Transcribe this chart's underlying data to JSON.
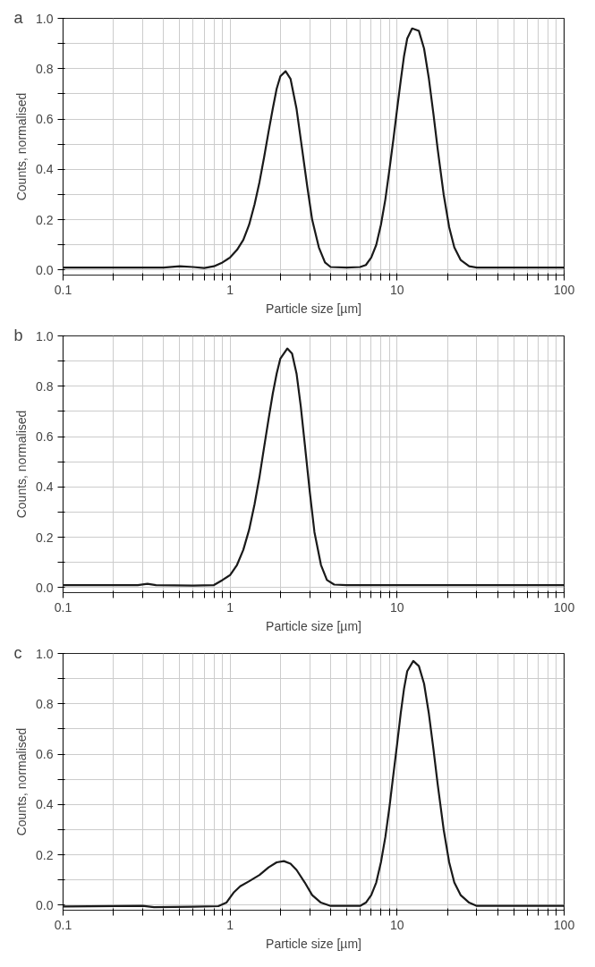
{
  "chart_data": [
    {
      "type": "line",
      "title": "a",
      "xlabel": "Particle size [µm]",
      "ylabel": "Counts, normalised",
      "log": "x",
      "grid": true,
      "marker": "none",
      "line_style": "solid",
      "xlim": [
        0.1,
        100
      ],
      "ylim": [
        -0.02,
        1.0
      ],
      "xticks": [
        0.1,
        {
          "value": 0.2,
          "label": null
        },
        {
          "value": 0.3,
          "label": null
        },
        {
          "value": 0.4,
          "label": null
        },
        {
          "value": 0.5,
          "label": null
        },
        {
          "value": 0.6,
          "label": null
        },
        {
          "value": 0.7,
          "label": null
        },
        {
          "value": 0.8,
          "label": null
        },
        {
          "value": 0.9,
          "label": null
        },
        1,
        {
          "value": 2,
          "label": null
        },
        {
          "value": 3,
          "label": null
        },
        {
          "value": 4,
          "label": null
        },
        {
          "value": 5,
          "label": null
        },
        {
          "value": 6,
          "label": null
        },
        {
          "value": 7,
          "label": null
        },
        {
          "value": 8,
          "label": null
        },
        {
          "value": 9,
          "label": null
        },
        10,
        {
          "value": 20,
          "label": null
        },
        {
          "value": 30,
          "label": null
        },
        {
          "value": 40,
          "label": null
        },
        {
          "value": 50,
          "label": null
        },
        {
          "value": 60,
          "label": null
        },
        {
          "value": 70,
          "label": null
        },
        {
          "value": 80,
          "label": null
        },
        {
          "value": 90,
          "label": null
        },
        100
      ],
      "yticks": [
        {
          "value": 0,
          "label": "0.0"
        },
        {
          "value": 0.1,
          "label": null
        },
        0.2,
        {
          "value": 0.3,
          "label": null
        },
        0.4,
        {
          "value": 0.5,
          "label": null
        },
        0.6,
        {
          "value": 0.7,
          "label": null
        },
        0.8,
        {
          "value": 0.9,
          "label": null
        },
        {
          "value": 1,
          "label": "1.0"
        }
      ],
      "series": [
        {
          "color": "#1a1a1a",
          "x": [
            0.1,
            0.4,
            0.5,
            0.6,
            0.7,
            0.8,
            0.9,
            1,
            1.1,
            1.2,
            1.3,
            1.4,
            1.5,
            1.6,
            1.7,
            1.8,
            1.9,
            2.0,
            2.15,
            2.3,
            2.5,
            2.7,
            2.9,
            3.1,
            3.4,
            3.7,
            4,
            5,
            6,
            6.5,
            7,
            7.5,
            8,
            8.5,
            9,
            9.5,
            10,
            10.5,
            11,
            11.5,
            12.3,
            13.5,
            14.5,
            15.5,
            16.5,
            17.5,
            19,
            20.5,
            22,
            24,
            27,
            30,
            100
          ],
          "values": [
            0.01,
            0.01,
            0.015,
            0.012,
            0.008,
            0.015,
            0.03,
            0.05,
            0.08,
            0.12,
            0.18,
            0.26,
            0.35,
            0.45,
            0.55,
            0.64,
            0.72,
            0.77,
            0.79,
            0.76,
            0.64,
            0.48,
            0.33,
            0.2,
            0.09,
            0.03,
            0.012,
            0.01,
            0.012,
            0.02,
            0.05,
            0.1,
            0.18,
            0.28,
            0.4,
            0.52,
            0.64,
            0.75,
            0.85,
            0.92,
            0.96,
            0.95,
            0.88,
            0.76,
            0.62,
            0.48,
            0.3,
            0.17,
            0.09,
            0.04,
            0.015,
            0.01,
            0.01
          ]
        }
      ]
    },
    {
      "type": "line",
      "title": "b",
      "xlabel": "Particle size [µm]",
      "ylabel": "Counts, normalised",
      "log": "x",
      "grid": true,
      "marker": "none",
      "line_style": "solid",
      "xlim": [
        0.1,
        100
      ],
      "ylim": [
        -0.02,
        1.0
      ],
      "xticks": [
        0.1,
        {
          "value": 0.2,
          "label": null
        },
        {
          "value": 0.3,
          "label": null
        },
        {
          "value": 0.4,
          "label": null
        },
        {
          "value": 0.5,
          "label": null
        },
        {
          "value": 0.6,
          "label": null
        },
        {
          "value": 0.7,
          "label": null
        },
        {
          "value": 0.8,
          "label": null
        },
        {
          "value": 0.9,
          "label": null
        },
        1,
        {
          "value": 2,
          "label": null
        },
        {
          "value": 3,
          "label": null
        },
        {
          "value": 4,
          "label": null
        },
        {
          "value": 5,
          "label": null
        },
        {
          "value": 6,
          "label": null
        },
        {
          "value": 7,
          "label": null
        },
        {
          "value": 8,
          "label": null
        },
        {
          "value": 9,
          "label": null
        },
        10,
        {
          "value": 20,
          "label": null
        },
        {
          "value": 30,
          "label": null
        },
        {
          "value": 40,
          "label": null
        },
        {
          "value": 50,
          "label": null
        },
        {
          "value": 60,
          "label": null
        },
        {
          "value": 70,
          "label": null
        },
        {
          "value": 80,
          "label": null
        },
        {
          "value": 90,
          "label": null
        },
        100
      ],
      "yticks": [
        {
          "value": 0,
          "label": "0.0"
        },
        {
          "value": 0.1,
          "label": null
        },
        0.2,
        {
          "value": 0.3,
          "label": null
        },
        0.4,
        {
          "value": 0.5,
          "label": null
        },
        0.6,
        {
          "value": 0.7,
          "label": null
        },
        0.8,
        {
          "value": 0.9,
          "label": null
        },
        {
          "value": 1,
          "label": "1.0"
        }
      ],
      "series": [
        {
          "color": "#1a1a1a",
          "x": [
            0.1,
            0.28,
            0.32,
            0.36,
            0.6,
            0.8,
            0.9,
            1,
            1.1,
            1.2,
            1.3,
            1.4,
            1.5,
            1.6,
            1.7,
            1.8,
            1.9,
            2.0,
            2.2,
            2.35,
            2.5,
            2.65,
            2.8,
            3.0,
            3.2,
            3.5,
            3.8,
            4.2,
            5,
            100
          ],
          "values": [
            0.01,
            0.01,
            0.015,
            0.01,
            0.008,
            0.01,
            0.03,
            0.05,
            0.09,
            0.15,
            0.23,
            0.33,
            0.44,
            0.56,
            0.67,
            0.77,
            0.85,
            0.91,
            0.95,
            0.93,
            0.85,
            0.72,
            0.57,
            0.38,
            0.22,
            0.09,
            0.03,
            0.012,
            0.01,
            0.01
          ]
        }
      ]
    },
    {
      "type": "line",
      "title": "c",
      "xlabel": "Particle size [µm]",
      "ylabel": "Counts, normalised",
      "log": "x",
      "grid": true,
      "marker": "none",
      "line_style": "solid",
      "xlim": [
        0.1,
        100
      ],
      "ylim": [
        -0.02,
        1.0
      ],
      "xticks": [
        0.1,
        {
          "value": 0.2,
          "label": null
        },
        {
          "value": 0.3,
          "label": null
        },
        {
          "value": 0.4,
          "label": null
        },
        {
          "value": 0.5,
          "label": null
        },
        {
          "value": 0.6,
          "label": null
        },
        {
          "value": 0.7,
          "label": null
        },
        {
          "value": 0.8,
          "label": null
        },
        {
          "value": 0.9,
          "label": null
        },
        1,
        {
          "value": 2,
          "label": null
        },
        {
          "value": 3,
          "label": null
        },
        {
          "value": 4,
          "label": null
        },
        {
          "value": 5,
          "label": null
        },
        {
          "value": 6,
          "label": null
        },
        {
          "value": 7,
          "label": null
        },
        {
          "value": 8,
          "label": null
        },
        {
          "value": 9,
          "label": null
        },
        10,
        {
          "value": 20,
          "label": null
        },
        {
          "value": 30,
          "label": null
        },
        {
          "value": 40,
          "label": null
        },
        {
          "value": 50,
          "label": null
        },
        {
          "value": 60,
          "label": null
        },
        {
          "value": 70,
          "label": null
        },
        {
          "value": 80,
          "label": null
        },
        {
          "value": 90,
          "label": null
        },
        100
      ],
      "yticks": [
        {
          "value": 0,
          "label": "0.0"
        },
        {
          "value": 0.1,
          "label": null
        },
        0.2,
        {
          "value": 0.3,
          "label": null
        },
        0.4,
        {
          "value": 0.5,
          "label": null
        },
        0.6,
        {
          "value": 0.7,
          "label": null
        },
        0.8,
        {
          "value": 0.9,
          "label": null
        },
        {
          "value": 1,
          "label": "1.0"
        }
      ],
      "series": [
        {
          "color": "#1a1a1a",
          "x": [
            0.1,
            0.3,
            0.35,
            0.6,
            0.85,
            0.95,
            1.05,
            1.15,
            1.3,
            1.5,
            1.7,
            1.9,
            2.1,
            2.3,
            2.5,
            2.8,
            3.1,
            3.5,
            4,
            6,
            6.5,
            7,
            7.5,
            8,
            8.5,
            9,
            9.5,
            10,
            10.5,
            11,
            11.5,
            12.5,
            13.5,
            14.5,
            15.5,
            16.5,
            17.5,
            19,
            20.5,
            22,
            24,
            27,
            30,
            100
          ],
          "values": [
            -0.005,
            -0.003,
            -0.008,
            -0.006,
            -0.004,
            0.01,
            0.05,
            0.075,
            0.095,
            0.12,
            0.15,
            0.17,
            0.175,
            0.165,
            0.14,
            0.09,
            0.04,
            0.01,
            -0.003,
            -0.003,
            0.01,
            0.04,
            0.09,
            0.17,
            0.27,
            0.39,
            0.52,
            0.64,
            0.76,
            0.86,
            0.93,
            0.97,
            0.95,
            0.88,
            0.76,
            0.62,
            0.48,
            0.3,
            0.17,
            0.09,
            0.04,
            0.01,
            -0.003,
            -0.003
          ]
        }
      ]
    }
  ]
}
